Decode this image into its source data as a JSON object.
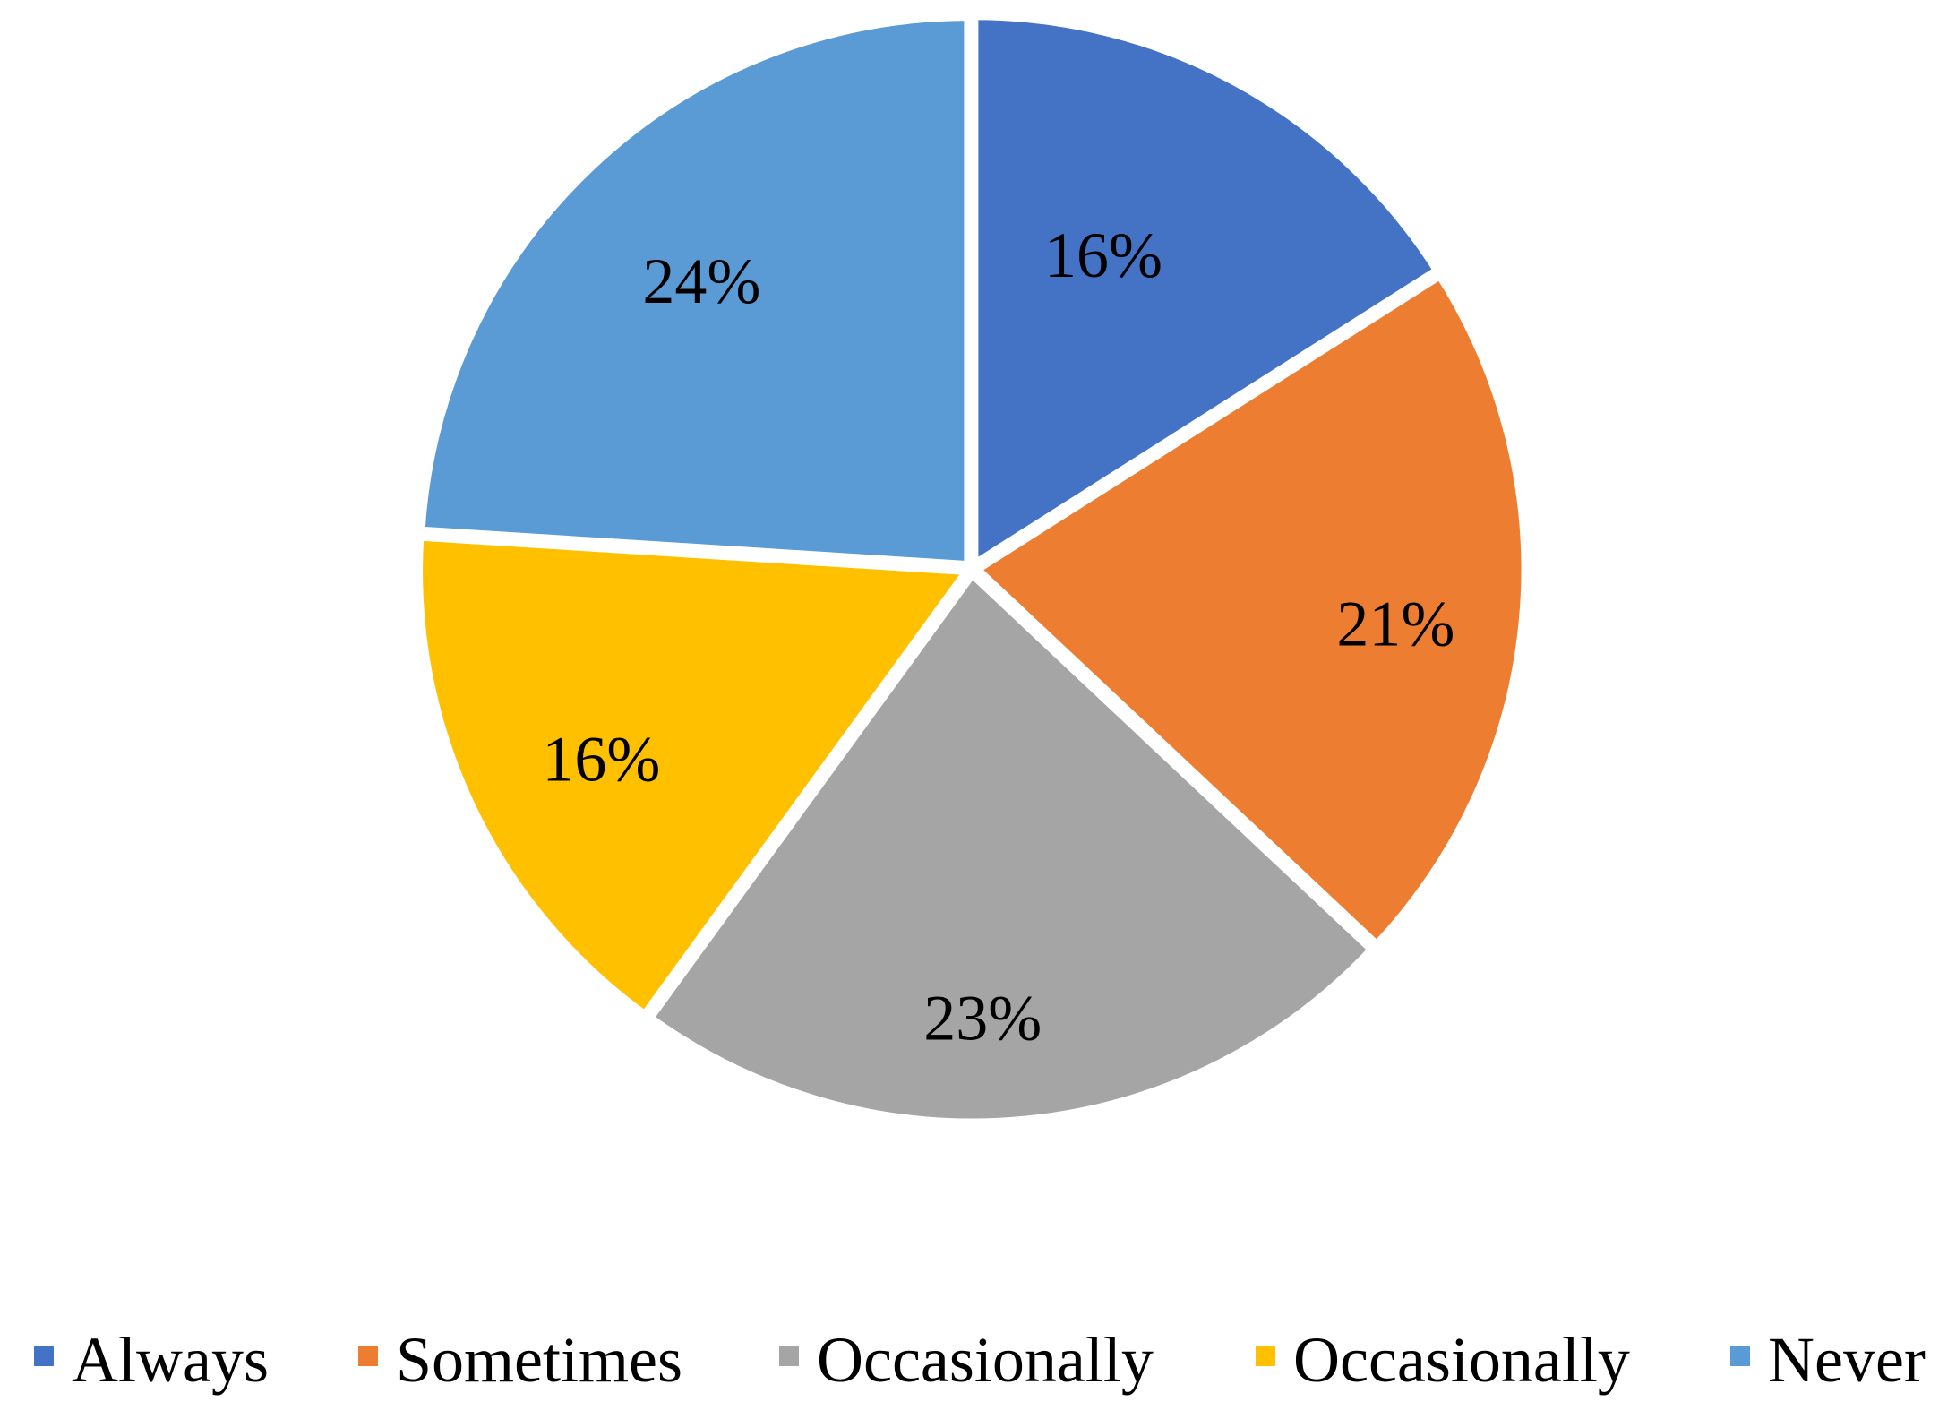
{
  "chart_data": {
    "type": "pie",
    "title": "",
    "legend_position": "bottom",
    "start_angle_deg": 0,
    "direction": "clockwise",
    "slices": [
      {
        "label": "Always",
        "value": 16,
        "display": "16%",
        "color": "#4472C4"
      },
      {
        "label": "Sometimes",
        "value": 21,
        "display": "21%",
        "color": "#ED7D31"
      },
      {
        "label": "Occasionally",
        "value": 23,
        "display": "23%",
        "color": "#A5A5A5"
      },
      {
        "label": "Occasionally",
        "value": 16,
        "display": "16%",
        "color": "#FFC000"
      },
      {
        "label": "Never",
        "value": 24,
        "display": "24%",
        "color": "#5B9BD5"
      }
    ]
  }
}
